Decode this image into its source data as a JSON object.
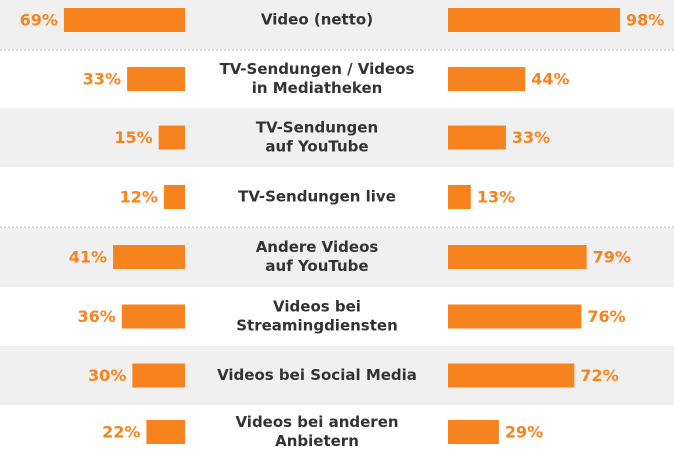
{
  "chart_data": {
    "type": "butterfly-bar",
    "categories": [
      [
        "Video (netto)"
      ],
      [
        "TV-Sendungen / Videos",
        "in Mediatheken"
      ],
      [
        "TV-Sendungen",
        "auf YouTube"
      ],
      [
        "TV-Sendungen live"
      ],
      [
        "Andere Videos",
        "auf YouTube"
      ],
      [
        "Videos bei",
        "Streamingdiensten"
      ],
      [
        "Videos bei Social Media"
      ],
      [
        "Videos bei anderen",
        "Anbietern"
      ]
    ],
    "series": [
      {
        "color": "#f7831f",
        "values": [
          69,
          33,
          15,
          12,
          41,
          36,
          30,
          22
        ],
        "value_labels": [
          "69%",
          "33%",
          "15%",
          "12%",
          "41%",
          "36%",
          "30%",
          "22%"
        ]
      },
      {
        "color": "#f7831f",
        "values": [
          98,
          44,
          33,
          13,
          79,
          76,
          72,
          29
        ],
        "value_labels": [
          "98%",
          "44%",
          "33%",
          "13%",
          "79%",
          "76%",
          "72%",
          "29%"
        ]
      }
    ]
  }
}
